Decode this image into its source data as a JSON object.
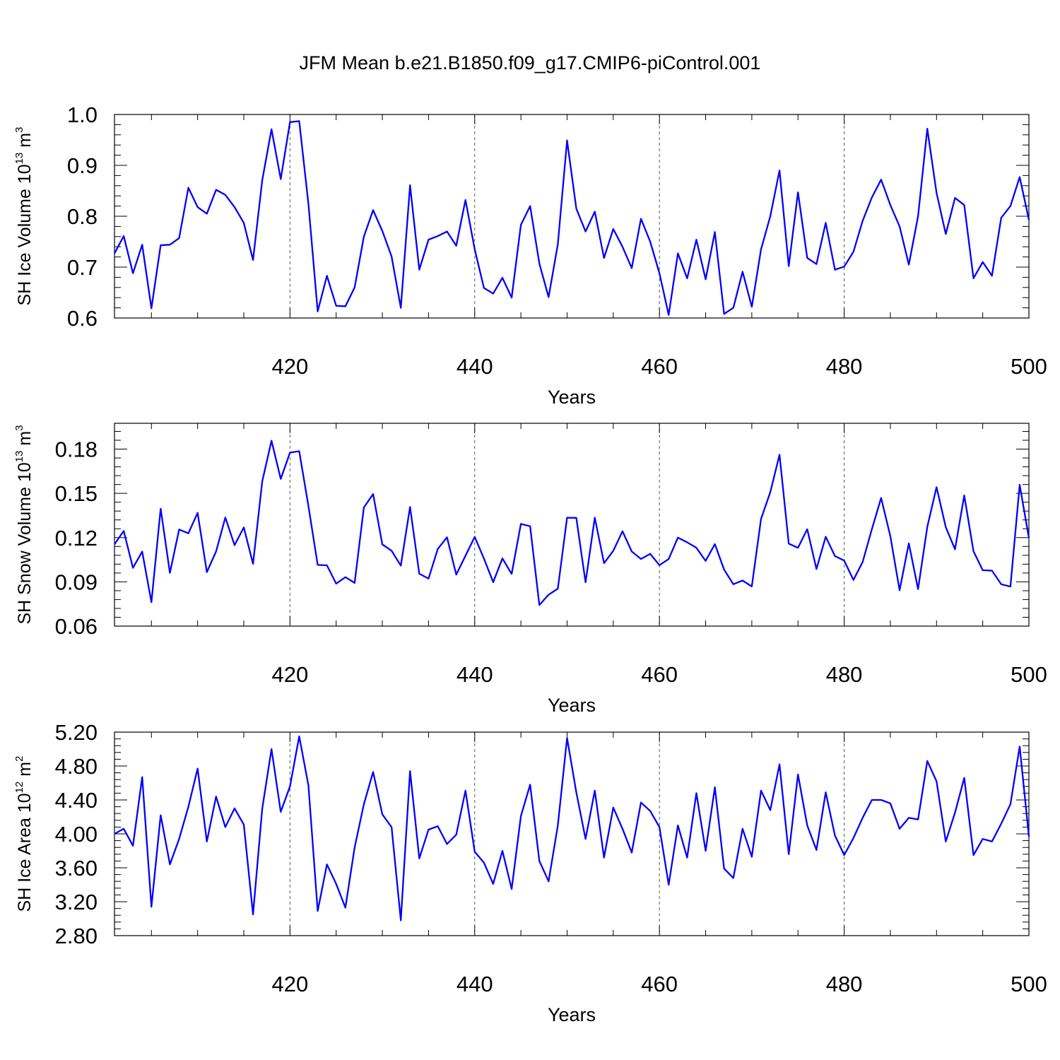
{
  "title": "JFM Mean b.e21.B1850.f09_g17.CMIP6-piControl.001",
  "chart_data": [
    {
      "type": "line",
      "ylabel": {
        "main": "SH Ice Volume 10",
        "sup": "13",
        "unit": " m",
        "unit_sup": "3"
      },
      "xlabel": "Years",
      "xlim": [
        401,
        500
      ],
      "ylim": [
        0.6,
        1.0
      ],
      "xticks": [
        420,
        440,
        460,
        480,
        500
      ],
      "xtick_labels": [
        "420",
        "440",
        "460",
        "480",
        "500"
      ],
      "yticks": [
        0.6,
        0.7,
        0.8,
        0.9,
        1.0
      ],
      "ytick_labels": [
        "0.6",
        "0.7",
        "0.8",
        "0.9",
        "1.0"
      ],
      "grid_x": [
        420,
        440,
        460,
        480
      ],
      "color": "#0000ff",
      "x_start": 401,
      "values": [
        0.727,
        0.761,
        0.688,
        0.744,
        0.619,
        0.743,
        0.744,
        0.757,
        0.856,
        0.818,
        0.805,
        0.852,
        0.842,
        0.818,
        0.787,
        0.714,
        0.871,
        0.971,
        0.873,
        0.985,
        0.987,
        0.824,
        0.613,
        0.683,
        0.624,
        0.623,
        0.66,
        0.76,
        0.812,
        0.771,
        0.721,
        0.62,
        0.861,
        0.695,
        0.754,
        0.761,
        0.77,
        0.742,
        0.832,
        0.735,
        0.659,
        0.648,
        0.679,
        0.64,
        0.783,
        0.82,
        0.707,
        0.641,
        0.745,
        0.949,
        0.815,
        0.77,
        0.809,
        0.718,
        0.775,
        0.74,
        0.698,
        0.795,
        0.75,
        0.688,
        0.606,
        0.727,
        0.678,
        0.754,
        0.676,
        0.769,
        0.608,
        0.62,
        0.691,
        0.622,
        0.735,
        0.8,
        0.89,
        0.702,
        0.847,
        0.718,
        0.706,
        0.787,
        0.695,
        0.701,
        0.73,
        0.791,
        0.837,
        0.872,
        0.822,
        0.78,
        0.705,
        0.8,
        0.972,
        0.846,
        0.765,
        0.836,
        0.822,
        0.678,
        0.71,
        0.683,
        0.797,
        0.82,
        0.877,
        0.793
      ]
    },
    {
      "type": "line",
      "ylabel": {
        "main": "SH Snow Volume 10",
        "sup": "13",
        "unit": " m",
        "unit_sup": "3"
      },
      "xlabel": "Years",
      "xlim": [
        401,
        500
      ],
      "ylim": [
        0.06,
        0.1975
      ],
      "xticks": [
        420,
        440,
        460,
        480,
        500
      ],
      "xtick_labels": [
        "420",
        "440",
        "460",
        "480",
        "500"
      ],
      "yticks": [
        0.06,
        0.09,
        0.12,
        0.15,
        0.18
      ],
      "ytick_labels": [
        "0.06",
        "0.09",
        "0.12",
        "0.15",
        "0.18"
      ],
      "grid_x": [
        420,
        440,
        460,
        480
      ],
      "color": "#0000ff",
      "x_start": 401,
      "values": [
        0.1155,
        0.1245,
        0.0995,
        0.1105,
        0.0762,
        0.1396,
        0.0961,
        0.1255,
        0.1229,
        0.1368,
        0.0966,
        0.1106,
        0.1336,
        0.1149,
        0.1269,
        0.1022,
        0.1582,
        0.1857,
        0.1598,
        0.1776,
        0.1786,
        0.1413,
        0.1015,
        0.1012,
        0.0888,
        0.0932,
        0.0893,
        0.1405,
        0.1495,
        0.1154,
        0.1111,
        0.101,
        0.1408,
        0.0955,
        0.0922,
        0.1123,
        0.1202,
        0.0949,
        0.1077,
        0.1205,
        0.1058,
        0.0898,
        0.1059,
        0.0954,
        0.1293,
        0.1277,
        0.0743,
        0.0813,
        0.0854,
        0.1335,
        0.1334,
        0.0897,
        0.1335,
        0.1027,
        0.111,
        0.1243,
        0.1106,
        0.1055,
        0.109,
        0.1013,
        0.1055,
        0.12,
        0.1168,
        0.1131,
        0.1042,
        0.1156,
        0.0983,
        0.0884,
        0.0909,
        0.0869,
        0.1327,
        0.1508,
        0.1762,
        0.1159,
        0.1131,
        0.1257,
        0.0987,
        0.1206,
        0.1075,
        0.1044,
        0.0913,
        0.1035,
        0.1257,
        0.1469,
        0.1209,
        0.0843,
        0.1161,
        0.0851,
        0.1273,
        0.1542,
        0.1271,
        0.1121,
        0.1486,
        0.1107,
        0.0979,
        0.0976,
        0.0884,
        0.0868,
        0.1558,
        0.1198
      ]
    },
    {
      "type": "line",
      "ylabel": {
        "main": "SH Ice Area 10",
        "sup": "12",
        "unit": " m",
        "unit_sup": "2"
      },
      "xlabel": "Years",
      "xlim": [
        401,
        500
      ],
      "ylim": [
        2.8,
        5.2
      ],
      "xticks": [
        420,
        440,
        460,
        480,
        500
      ],
      "xtick_labels": [
        "420",
        "440",
        "460",
        "480",
        "500"
      ],
      "yticks": [
        2.8,
        3.2,
        3.6,
        4.0,
        4.4,
        4.8,
        5.2
      ],
      "ytick_labels": [
        "2.80",
        "3.20",
        "3.60",
        "4.00",
        "4.40",
        "4.80",
        "5.20"
      ],
      "grid_x": [
        420,
        440,
        460,
        480
      ],
      "color": "#0000ff",
      "x_start": 401,
      "values": [
        4.0,
        4.06,
        3.86,
        4.67,
        3.14,
        4.22,
        3.64,
        3.94,
        4.32,
        4.77,
        3.91,
        4.44,
        4.08,
        4.3,
        4.11,
        3.05,
        4.3,
        5.0,
        4.26,
        4.56,
        5.15,
        4.57,
        3.09,
        3.64,
        3.41,
        3.13,
        3.84,
        4.35,
        4.73,
        4.23,
        4.08,
        2.98,
        4.74,
        3.71,
        4.05,
        4.09,
        3.88,
        3.99,
        4.51,
        3.79,
        3.66,
        3.41,
        3.8,
        3.35,
        4.21,
        4.58,
        3.68,
        3.44,
        4.1,
        5.13,
        4.49,
        3.94,
        4.51,
        3.72,
        4.31,
        4.06,
        3.78,
        4.37,
        4.27,
        4.08,
        3.4,
        4.1,
        3.72,
        4.48,
        3.8,
        4.55,
        3.59,
        3.48,
        4.06,
        3.73,
        4.51,
        4.28,
        4.82,
        3.76,
        4.7,
        4.1,
        3.81,
        4.49,
        3.98,
        3.75,
        3.95,
        4.19,
        4.4,
        4.4,
        4.36,
        4.06,
        4.19,
        4.17,
        4.86,
        4.62,
        3.91,
        4.25,
        4.66,
        3.75,
        3.94,
        3.91,
        4.12,
        4.35,
        5.03,
        3.97
      ]
    }
  ]
}
